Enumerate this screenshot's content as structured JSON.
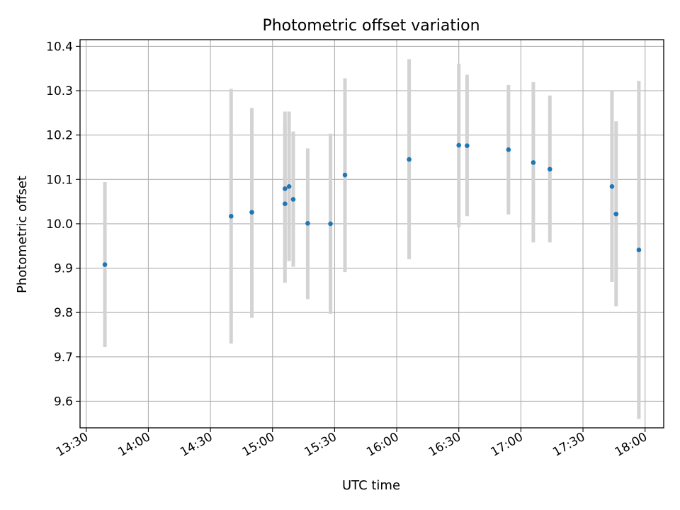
{
  "chart_data": {
    "type": "scatter",
    "title": "Photometric offset variation",
    "xlabel": "UTC time",
    "ylabel": "Photometric offset",
    "x_ticks": [
      "13:30",
      "14:00",
      "14:30",
      "15:00",
      "15:30",
      "16:00",
      "16:30",
      "17:00",
      "17:30",
      "18:00"
    ],
    "y_ticks": [
      "9.6",
      "9.7",
      "9.8",
      "9.9",
      "10.0",
      "10.1",
      "10.2",
      "10.3",
      "10.4"
    ],
    "xlim": [
      "13:27",
      "18:09"
    ],
    "ylim": [
      9.54,
      10.415
    ],
    "grid": true,
    "error_bars": true,
    "points": [
      {
        "t": "13:39",
        "y": 9.908,
        "lo": 9.722,
        "hi": 10.094
      },
      {
        "t": "14:40",
        "y": 10.017,
        "lo": 9.73,
        "hi": 10.304
      },
      {
        "t": "14:50",
        "y": 10.026,
        "lo": 9.788,
        "hi": 10.261
      },
      {
        "t": "15:06",
        "y": 10.079,
        "lo": 9.904,
        "hi": 10.253
      },
      {
        "t": "15:06",
        "y": 10.045,
        "lo": 9.867,
        "hi": 10.224
      },
      {
        "t": "15:08",
        "y": 10.084,
        "lo": 9.916,
        "hi": 10.253
      },
      {
        "t": "15:10",
        "y": 10.055,
        "lo": 9.903,
        "hi": 10.208
      },
      {
        "t": "15:17",
        "y": 10.001,
        "lo": 9.83,
        "hi": 10.17
      },
      {
        "t": "15:28",
        "y": 10.0,
        "lo": 9.797,
        "hi": 10.203
      },
      {
        "t": "15:35",
        "y": 10.11,
        "lo": 9.891,
        "hi": 10.328
      },
      {
        "t": "16:06",
        "y": 10.145,
        "lo": 9.92,
        "hi": 10.371
      },
      {
        "t": "16:30",
        "y": 10.177,
        "lo": 9.992,
        "hi": 10.361
      },
      {
        "t": "16:34",
        "y": 10.176,
        "lo": 10.017,
        "hi": 10.336
      },
      {
        "t": "16:54",
        "y": 10.167,
        "lo": 10.021,
        "hi": 10.313
      },
      {
        "t": "17:06",
        "y": 10.138,
        "lo": 9.958,
        "hi": 10.319
      },
      {
        "t": "17:14",
        "y": 10.123,
        "lo": 9.958,
        "hi": 10.289
      },
      {
        "t": "17:44",
        "y": 10.084,
        "lo": 9.869,
        "hi": 10.3
      },
      {
        "t": "17:46",
        "y": 10.022,
        "lo": 9.814,
        "hi": 10.231
      },
      {
        "t": "17:57",
        "y": 9.941,
        "lo": 9.56,
        "hi": 10.322
      }
    ],
    "colors": {
      "point": "#1f77b4",
      "error_bar": "#d3d3d3",
      "grid": "#b0b0b0",
      "axes": "#000000"
    }
  }
}
